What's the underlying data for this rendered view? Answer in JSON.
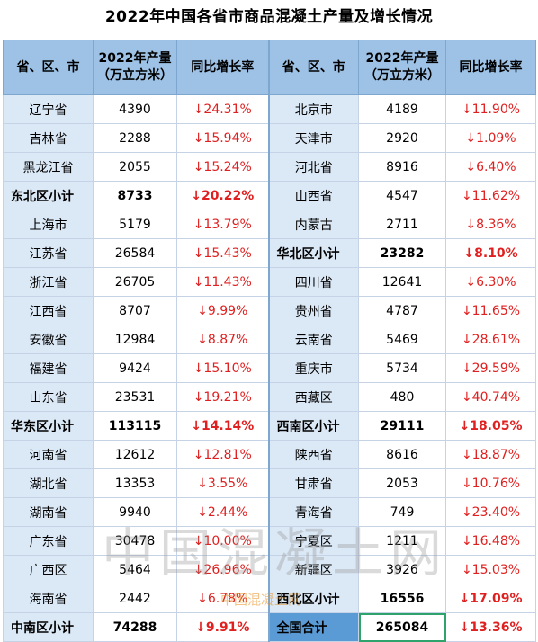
{
  "title": "2022年中国各省市商品混凝土产量及增长情况",
  "headers": {
    "province": "省、区、市",
    "output_line1": "2022年产量",
    "output_line2": "（万立方米）",
    "growth": "同比增长率"
  },
  "left_rows": [
    {
      "name": "辽宁省",
      "value": "4390",
      "rate": "↓24.31%",
      "subtotal": false
    },
    {
      "name": "吉林省",
      "value": "2288",
      "rate": "↓15.94%",
      "subtotal": false
    },
    {
      "name": "黑龙江省",
      "value": "2055",
      "rate": "↓15.24%",
      "subtotal": false
    },
    {
      "name": "东北区小计",
      "value": "8733",
      "rate": "↓20.22%",
      "subtotal": true
    },
    {
      "name": "上海市",
      "value": "5179",
      "rate": "↓13.79%",
      "subtotal": false
    },
    {
      "name": "江苏省",
      "value": "26584",
      "rate": "↓15.43%",
      "subtotal": false
    },
    {
      "name": "浙江省",
      "value": "26705",
      "rate": "↓11.43%",
      "subtotal": false
    },
    {
      "name": "江西省",
      "value": "8707",
      "rate": "↓9.99%",
      "subtotal": false
    },
    {
      "name": "安徽省",
      "value": "12984",
      "rate": "↓8.87%",
      "subtotal": false
    },
    {
      "name": "福建省",
      "value": "9424",
      "rate": "↓15.10%",
      "subtotal": false
    },
    {
      "name": "山东省",
      "value": "23531",
      "rate": "↓19.21%",
      "subtotal": false
    },
    {
      "name": "华东区小计",
      "value": "113115",
      "rate": "↓14.14%",
      "subtotal": true
    },
    {
      "name": "河南省",
      "value": "12612",
      "rate": "↓12.81%",
      "subtotal": false
    },
    {
      "name": "湖北省",
      "value": "13353",
      "rate": "↓3.55%",
      "subtotal": false
    },
    {
      "name": "湖南省",
      "value": "9940",
      "rate": "↓2.44%",
      "subtotal": false
    },
    {
      "name": "广东省",
      "value": "30478",
      "rate": "↓10.00%",
      "subtotal": false
    },
    {
      "name": "广西区",
      "value": "5464",
      "rate": "↓26.96%",
      "subtotal": false
    },
    {
      "name": "海南省",
      "value": "2442",
      "rate": "↓6.78%",
      "subtotal": false
    },
    {
      "name": "中南区小计",
      "value": "74288",
      "rate": "↓9.91%",
      "subtotal": true
    }
  ],
  "right_rows": [
    {
      "name": "北京市",
      "value": "4189",
      "rate": "↓11.90%",
      "subtotal": false
    },
    {
      "name": "天津市",
      "value": "2920",
      "rate": "↓1.09%",
      "subtotal": false
    },
    {
      "name": "河北省",
      "value": "8916",
      "rate": "↓6.40%",
      "subtotal": false
    },
    {
      "name": "山西省",
      "value": "4547",
      "rate": "↓11.62%",
      "subtotal": false
    },
    {
      "name": "内蒙古",
      "value": "2711",
      "rate": "↓8.36%",
      "subtotal": false
    },
    {
      "name": "华北区小计",
      "value": "23282",
      "rate": "↓8.10%",
      "subtotal": true
    },
    {
      "name": "四川省",
      "value": "12641",
      "rate": "↓6.30%",
      "subtotal": false
    },
    {
      "name": "贵州省",
      "value": "4787",
      "rate": "↓11.65%",
      "subtotal": false
    },
    {
      "name": "云南省",
      "value": "5469",
      "rate": "↓28.61%",
      "subtotal": false
    },
    {
      "name": "重庆市",
      "value": "5734",
      "rate": "↓29.59%",
      "subtotal": false
    },
    {
      "name": "西藏区",
      "value": "480",
      "rate": "↓40.74%",
      "subtotal": false
    },
    {
      "name": "西南区小计",
      "value": "29111",
      "rate": "↓18.05%",
      "subtotal": true
    },
    {
      "name": "陕西省",
      "value": "8616",
      "rate": "↓18.87%",
      "subtotal": false
    },
    {
      "name": "甘肃省",
      "value": "2053",
      "rate": "↓10.76%",
      "subtotal": false
    },
    {
      "name": "青海省",
      "value": "749",
      "rate": "↓23.40%",
      "subtotal": false
    },
    {
      "name": "宁夏区",
      "value": "1211",
      "rate": "↓16.48%",
      "subtotal": false
    },
    {
      "name": "新疆区",
      "value": "3926",
      "rate": "↓15.03%",
      "subtotal": false
    },
    {
      "name": "西北区小计",
      "value": "16556",
      "rate": "↓17.09%",
      "subtotal": true
    },
    {
      "name": "全国合计",
      "value": "265084",
      "rate": "↓13.36%",
      "subtotal": true,
      "total": true
    }
  ],
  "watermark": "中国混凝土网",
  "watermark_small": "中国混凝土网",
  "colors": {
    "header_bg": "#9dc2e6",
    "name_cell_bg": "#dbe8f6",
    "total_bg": "#5b9bd5",
    "decline_red": "#e02020",
    "highlight_border": "#2ea36b"
  }
}
